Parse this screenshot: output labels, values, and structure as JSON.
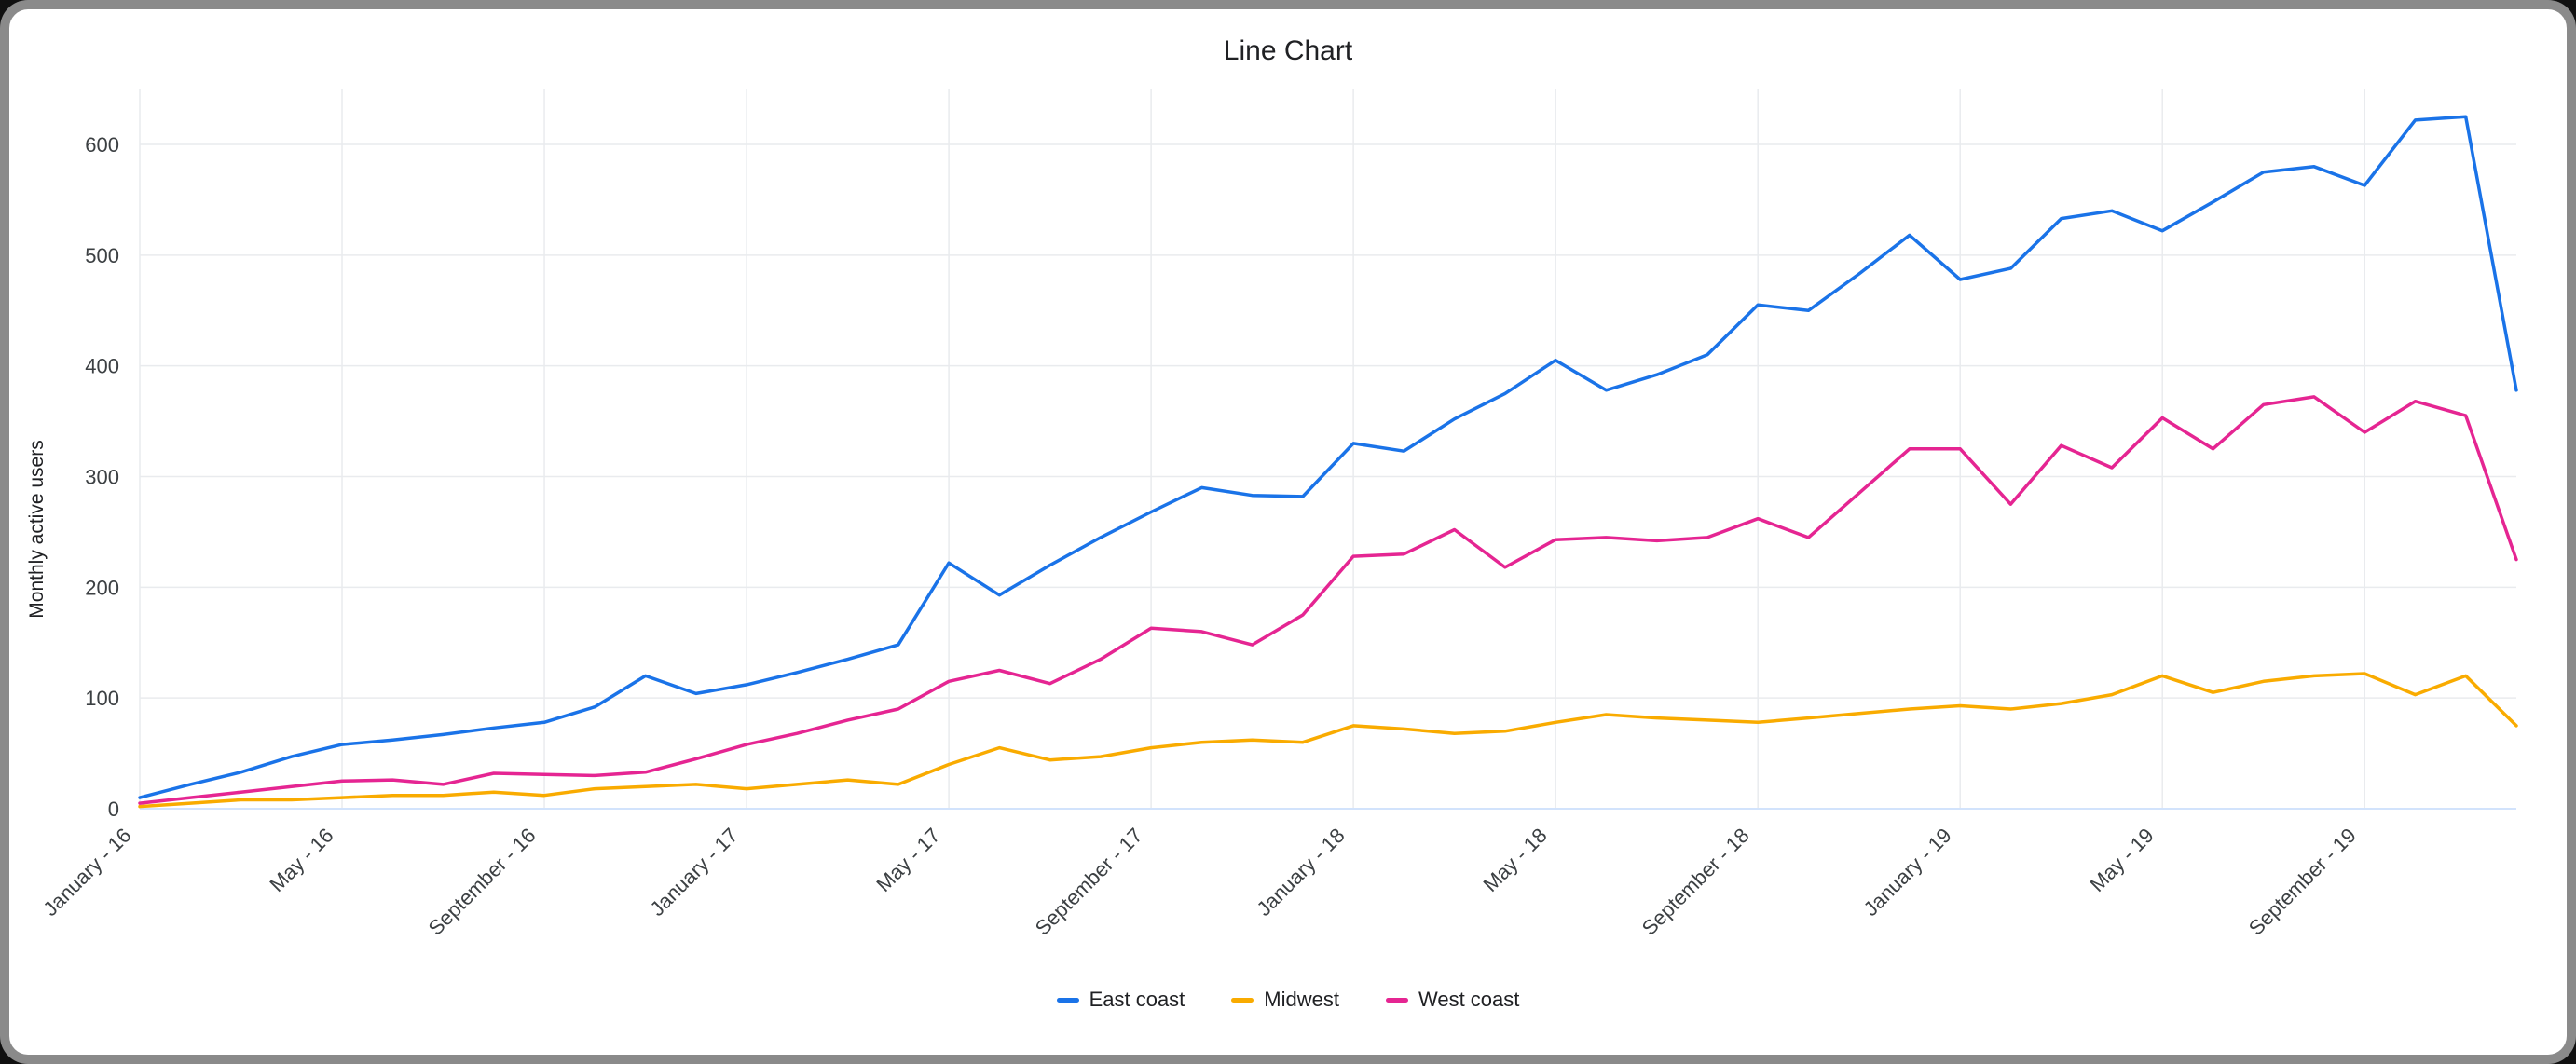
{
  "chart_data": {
    "type": "line",
    "title": "Line Chart",
    "xlabel": "",
    "ylabel": "Monthly active users",
    "ylim": [
      0,
      650
    ],
    "y_ticks": [
      0,
      100,
      200,
      300,
      400,
      500,
      600
    ],
    "grid": true,
    "legend_position": "bottom",
    "n_points": 48,
    "x_unit": "month, January 2016 through December 2019",
    "x_tick_labels": [
      "January - 16",
      "May - 16",
      "September - 16",
      "January - 17",
      "May - 17",
      "September - 17",
      "January - 18",
      "May - 18",
      "September - 18",
      "January - 19",
      "May - 19",
      "September - 19"
    ],
    "x_tick_indices": [
      0,
      4,
      8,
      12,
      16,
      20,
      24,
      28,
      32,
      36,
      40,
      44
    ],
    "series": [
      {
        "name": "East coast",
        "color": "#1a73e8",
        "values": [
          10,
          22,
          33,
          47,
          58,
          62,
          67,
          73,
          78,
          92,
          120,
          104,
          112,
          123,
          135,
          148,
          222,
          193,
          220,
          245,
          268,
          290,
          283,
          282,
          330,
          323,
          352,
          375,
          405,
          378,
          392,
          410,
          455,
          450,
          483,
          518,
          478,
          488,
          533,
          540,
          522,
          548,
          575,
          580,
          563,
          622,
          625,
          378
        ]
      },
      {
        "name": "Midwest",
        "color": "#f9ab00",
        "values": [
          2,
          5,
          8,
          8,
          10,
          12,
          12,
          15,
          12,
          18,
          20,
          22,
          18,
          22,
          26,
          22,
          40,
          55,
          44,
          47,
          55,
          60,
          62,
          60,
          75,
          72,
          68,
          70,
          78,
          85,
          82,
          80,
          78,
          82,
          86,
          90,
          93,
          90,
          95,
          103,
          120,
          105,
          115,
          120,
          122,
          103,
          120,
          75
        ]
      },
      {
        "name": "West coast",
        "color": "#e52592",
        "values": [
          5,
          10,
          15,
          20,
          25,
          26,
          22,
          32,
          31,
          30,
          33,
          45,
          58,
          68,
          80,
          90,
          115,
          125,
          113,
          135,
          163,
          160,
          148,
          175,
          228,
          230,
          252,
          218,
          243,
          245,
          242,
          245,
          262,
          245,
          285,
          325,
          325,
          275,
          328,
          308,
          353,
          325,
          365,
          372,
          340,
          368,
          355,
          225
        ]
      }
    ]
  }
}
